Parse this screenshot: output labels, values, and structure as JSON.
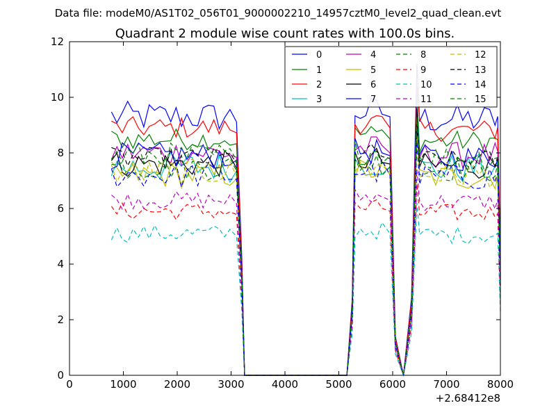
{
  "header": {
    "suptitle": "Data file: modeM0/AS1T02_056T01_9000002210_14957cztM0_level2_quad_clean.evt"
  },
  "chart_data": {
    "type": "line",
    "title": "Quadrant 2 module wise count rates with 100.0s bins.",
    "xlabel": "",
    "ylabel": "",
    "x_offset_label": "+2.68412e8",
    "xlim": [
      0,
      8000
    ],
    "ylim": [
      0,
      12
    ],
    "xticks": [
      0,
      1000,
      2000,
      3000,
      4000,
      5000,
      6000,
      7000,
      8000
    ],
    "yticks": [
      0,
      2,
      4,
      6,
      8,
      10,
      12
    ],
    "grid": false,
    "legend_position": "top-right",
    "gap_segments": [
      [
        3000,
        3300
      ],
      [
        5150,
        5350
      ],
      [
        5900,
        6050
      ],
      [
        6050,
        6200
      ],
      [
        6200,
        6300
      ],
      [
        6300,
        6500
      ],
      [
        7900,
        8000
      ]
    ],
    "series_colors": [
      "#0000ff",
      "#008000",
      "#ff0000",
      "#00bfbf",
      "#bf00bf",
      "#bfbf00",
      "#000000",
      "#0000ff",
      "#008000",
      "#ff0000",
      "#00bfbf",
      "#bf00bf",
      "#bfbf00",
      "#000000",
      "#0000ff",
      "#008000"
    ],
    "series_styles": [
      "solid",
      "solid",
      "solid",
      "solid",
      "solid",
      "solid",
      "solid",
      "solid",
      "dashed",
      "dashed",
      "dashed",
      "dashed",
      "dashed",
      "dashed",
      "dashed",
      "dashed"
    ],
    "series_names": [
      "0",
      "1",
      "2",
      "3",
      "4",
      "5",
      "6",
      "7",
      "8",
      "9",
      "10",
      "11",
      "12",
      "13",
      "14",
      "15"
    ],
    "series_levels": [
      9.3,
      8.5,
      8.9,
      7.5,
      8.0,
      7.2,
      7.6,
      7.9,
      7.5,
      5.9,
      5.1,
      6.3,
      7.3,
      7.8,
      7.2,
      7.9
    ],
    "series_noise": [
      0.35,
      0.25,
      0.25,
      0.35,
      0.3,
      0.3,
      0.3,
      0.3,
      0.3,
      0.2,
      0.2,
      0.2,
      0.3,
      0.25,
      0.3,
      0.3
    ],
    "segment_1": {
      "x_start": 780,
      "x_end": 3000,
      "step": 100
    },
    "segment_2": {
      "x_start": 5300,
      "x_end": 5850,
      "step": 100
    },
    "segment_3": {
      "x_start": 6500,
      "x_end": 7900,
      "step": 100
    },
    "zero_x": [
      3300,
      3400,
      3500,
      3600,
      3700,
      3800,
      3900,
      4000,
      4100,
      4200,
      4300,
      4400,
      4500,
      4600,
      4700,
      4800,
      4900,
      5000,
      5100,
      5150
    ],
    "dip_x": [
      6200
    ],
    "peak_x": [
      6450
    ],
    "peak_values": [
      11.2,
      10.1,
      10.4,
      9.8,
      9.0,
      8.8,
      9.6,
      8.9,
      9.3,
      6.9,
      6.2,
      7.4,
      8.5,
      9.0,
      8.4,
      9.2
    ]
  }
}
